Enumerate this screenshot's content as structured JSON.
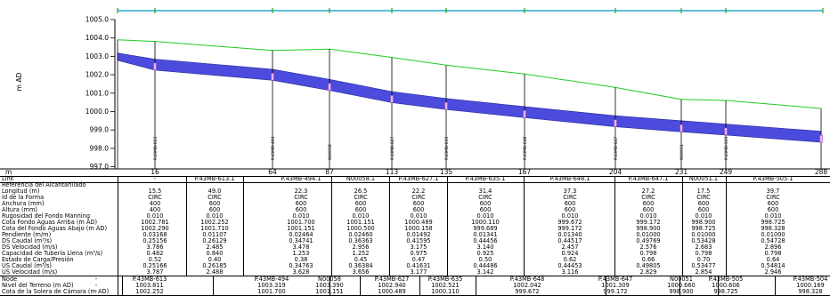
{
  "y_axis_label": "m AD",
  "x_axis_unit": "m",
  "y_ticks": [
    "1005.0",
    "1004.0",
    "1003.0",
    "1002.0",
    "1001.0",
    "1000.0",
    "999.0",
    "998.0",
    "997.0"
  ],
  "x_ticks": [
    "16",
    "64",
    "87",
    "113",
    "135",
    "167",
    "204",
    "231",
    "249",
    "288"
  ],
  "node_labels": [
    "P.43MB-613",
    "P.43MB-494",
    "N00058",
    "P.43MB-627",
    "P.43MB-635",
    "P.43MB-648",
    "P.43MB-647",
    "N00051",
    "P.43MB-505"
  ],
  "colors": {
    "ground": "#22cc22",
    "pipe": "#4b4bdd",
    "pipe_edge": "#2a2a99",
    "manhole_fill": "#e6b3ff",
    "top_bar": "#2aa7d4"
  },
  "table": {
    "link_label": "Link",
    "links": [
      "-",
      "P.43MB-613.1",
      "P.43MB-494.1",
      "N00058.1",
      "P.43MB-627.1",
      "P.43MB-635.1",
      "P.43MB-648.1",
      "P.43MB-647.1",
      "N00051.1",
      "P.43MB-505.1"
    ],
    "link_rows": [
      {
        "label": "Referencia del Alcantarillado",
        "values": [
          "",
          "",
          "",
          "",
          "",
          "",
          "",
          "",
          "",
          ""
        ]
      },
      {
        "label": "Longitud (m)",
        "values": [
          "15.5",
          "49.0",
          "22.3",
          "26.5",
          "22.2",
          "31.4",
          "37.3",
          "27.2",
          "17.5",
          "39.7"
        ]
      },
      {
        "label": "Id de la Forma",
        "values": [
          "CIRC",
          "CIRC",
          "CIRC",
          "CIRC",
          "CIRC",
          "CIRC",
          "CIRC",
          "CIRC",
          "CIRC",
          "CIRC"
        ]
      },
      {
        "label": "Anchura (mm)",
        "values": [
          "400",
          "600",
          "600",
          "600",
          "600",
          "600",
          "600",
          "600",
          "600",
          "600"
        ]
      },
      {
        "label": "Altura (mm)",
        "values": [
          "400",
          "600",
          "600",
          "600",
          "600",
          "600",
          "600",
          "600",
          "600",
          "600"
        ]
      },
      {
        "label": "Rugosidad del Fondo Manning",
        "values": [
          "0.010",
          "0.010",
          "0.010",
          "0.010",
          "0.010",
          "0.010",
          "0.010",
          "0.010",
          "0.010",
          "0.010"
        ]
      },
      {
        "label": "Cota Fondo Aguas Arriba (m AD)",
        "values": [
          "1002.781",
          "1002.252",
          "1001.700",
          "1001.151",
          "1000.489",
          "1000.110",
          "999.672",
          "999.172",
          "998.900",
          "998.725"
        ]
      },
      {
        "label": "Cota del Fondo Aguas Abajo (m AD)",
        "values": [
          "1002.290",
          "1001.710",
          "1001.151",
          "1000.500",
          "1000.158",
          "999.689",
          "999.172",
          "998.900",
          "998.725",
          "998.328"
        ]
      },
      {
        "label": "Pendiente (m/m)",
        "values": [
          "0.03168",
          "0.01107",
          "0.02464",
          "0.02460",
          "0.01492",
          "0.01341",
          "0.01340",
          "0.01000",
          "0.01000",
          "0.01000"
        ]
      },
      {
        "label": "DS Caudal (m³/s)",
        "values": [
          "0.25156",
          "0.26129",
          "0.34741",
          "0.36363",
          "0.41595",
          "0.44456",
          "0.44517",
          "0.49769",
          "0.53428",
          "0.54728"
        ]
      },
      {
        "label": "DS Velocidad (m/s)",
        "values": [
          "3.786",
          "2.485",
          "3.478",
          "2.956",
          "3.175",
          "3.140",
          "2.457",
          "2.576",
          "2.683",
          "2.896"
        ]
      },
      {
        "label": "Capacidad de Tubería Llena (m³/s)",
        "values": [
          "0.482",
          "0.840",
          "1.253",
          "1.252",
          "0.975",
          "0.925",
          "0.924",
          "0.798",
          "0.798",
          "0.798"
        ]
      },
      {
        "label": "Estado de Carga/Presión",
        "values": [
          "0.52",
          "0.40",
          "0.38",
          "0.45",
          "0.47",
          "0.50",
          "0.62",
          "0.66",
          "0.70",
          "0.64"
        ]
      },
      {
        "label": "US Caudal (m³/s)",
        "values": [
          "0.25166",
          "0.26185",
          "0.34763",
          "0.36384",
          "0.41631",
          "0.44486",
          "0.44453",
          "0.49805",
          "0.53477",
          "0.54814"
        ]
      },
      {
        "label": "US Velocidad (m/s)",
        "values": [
          "3.787",
          "2.488",
          "3.628",
          "3.656",
          "3.177",
          "3.142",
          "3.116",
          "2.829",
          "2.854",
          "2.946"
        ]
      }
    ],
    "node_rows": [
      {
        "label": "Node",
        "values": [
          "-",
          "P.43MB-613",
          "P.43MB-494",
          "N00058",
          "P.43MB-627",
          "P.43MB-635",
          "P.43MB-648",
          "P.43MB-647",
          "N00051",
          "P.43MB-505",
          "P.43MB-504"
        ]
      },
      {
        "label": "Nivel del Terreno (m AD)",
        "values": [
          "-",
          "1003.811",
          "1003.319",
          "1003.390",
          "1002.940",
          "1002.521",
          "1002.042",
          "1001.309",
          "1000.660",
          "1000.606",
          "1000.169"
        ]
      },
      {
        "label": "Cota de la Solera de Cámara (m AD)",
        "values": [
          "-",
          "1002.252",
          "1001.700",
          "1001.151",
          "1000.489",
          "1000.110",
          "999.672",
          "999.172",
          "998.900",
          "998.725",
          "998.328"
        ]
      }
    ]
  }
}
